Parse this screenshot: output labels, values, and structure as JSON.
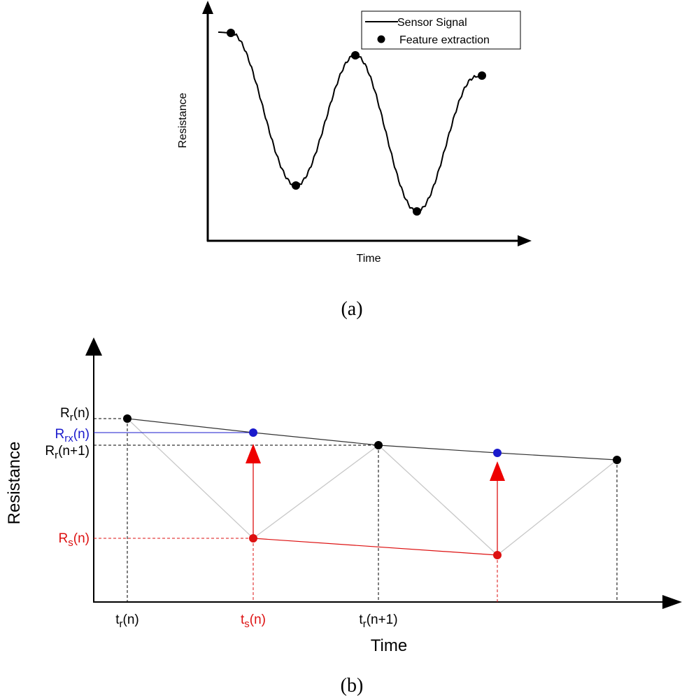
{
  "panel_a": {
    "caption": "(a)",
    "y_axis_label": "Resistance",
    "x_axis_label": "Time",
    "legend": {
      "line_label": "Sensor Signal",
      "marker_label": "Feature extraction"
    },
    "colors": {
      "signal": "#000000",
      "marker": "#000000"
    }
  },
  "panel_b": {
    "caption": "(b)",
    "y_axis_label": "Resistance",
    "x_axis_label": "Time",
    "y_labels": {
      "rr_n": {
        "main": "R",
        "sub": "r",
        "tail": "(n)"
      },
      "rrx_n": {
        "main": "R",
        "sub": "rx",
        "tail": "(n)"
      },
      "rr_n1": {
        "main": "R",
        "sub": "r",
        "tail": "(n+1)"
      },
      "rs_n": {
        "main": "R",
        "sub": "s",
        "tail": "(n)"
      }
    },
    "x_labels": {
      "tr_n": {
        "main": "t",
        "sub": "r",
        "tail": "(n)"
      },
      "ts_n": {
        "main": "t",
        "sub": "s",
        "tail": "(n)"
      },
      "tr_n1": {
        "main": "t",
        "sub": "r",
        "tail": "(n+1)"
      }
    },
    "colors": {
      "reference": "#000000",
      "sample": "#dd1111",
      "corrected": "#1a1acc",
      "envelope": "#c8c8c8"
    }
  }
}
